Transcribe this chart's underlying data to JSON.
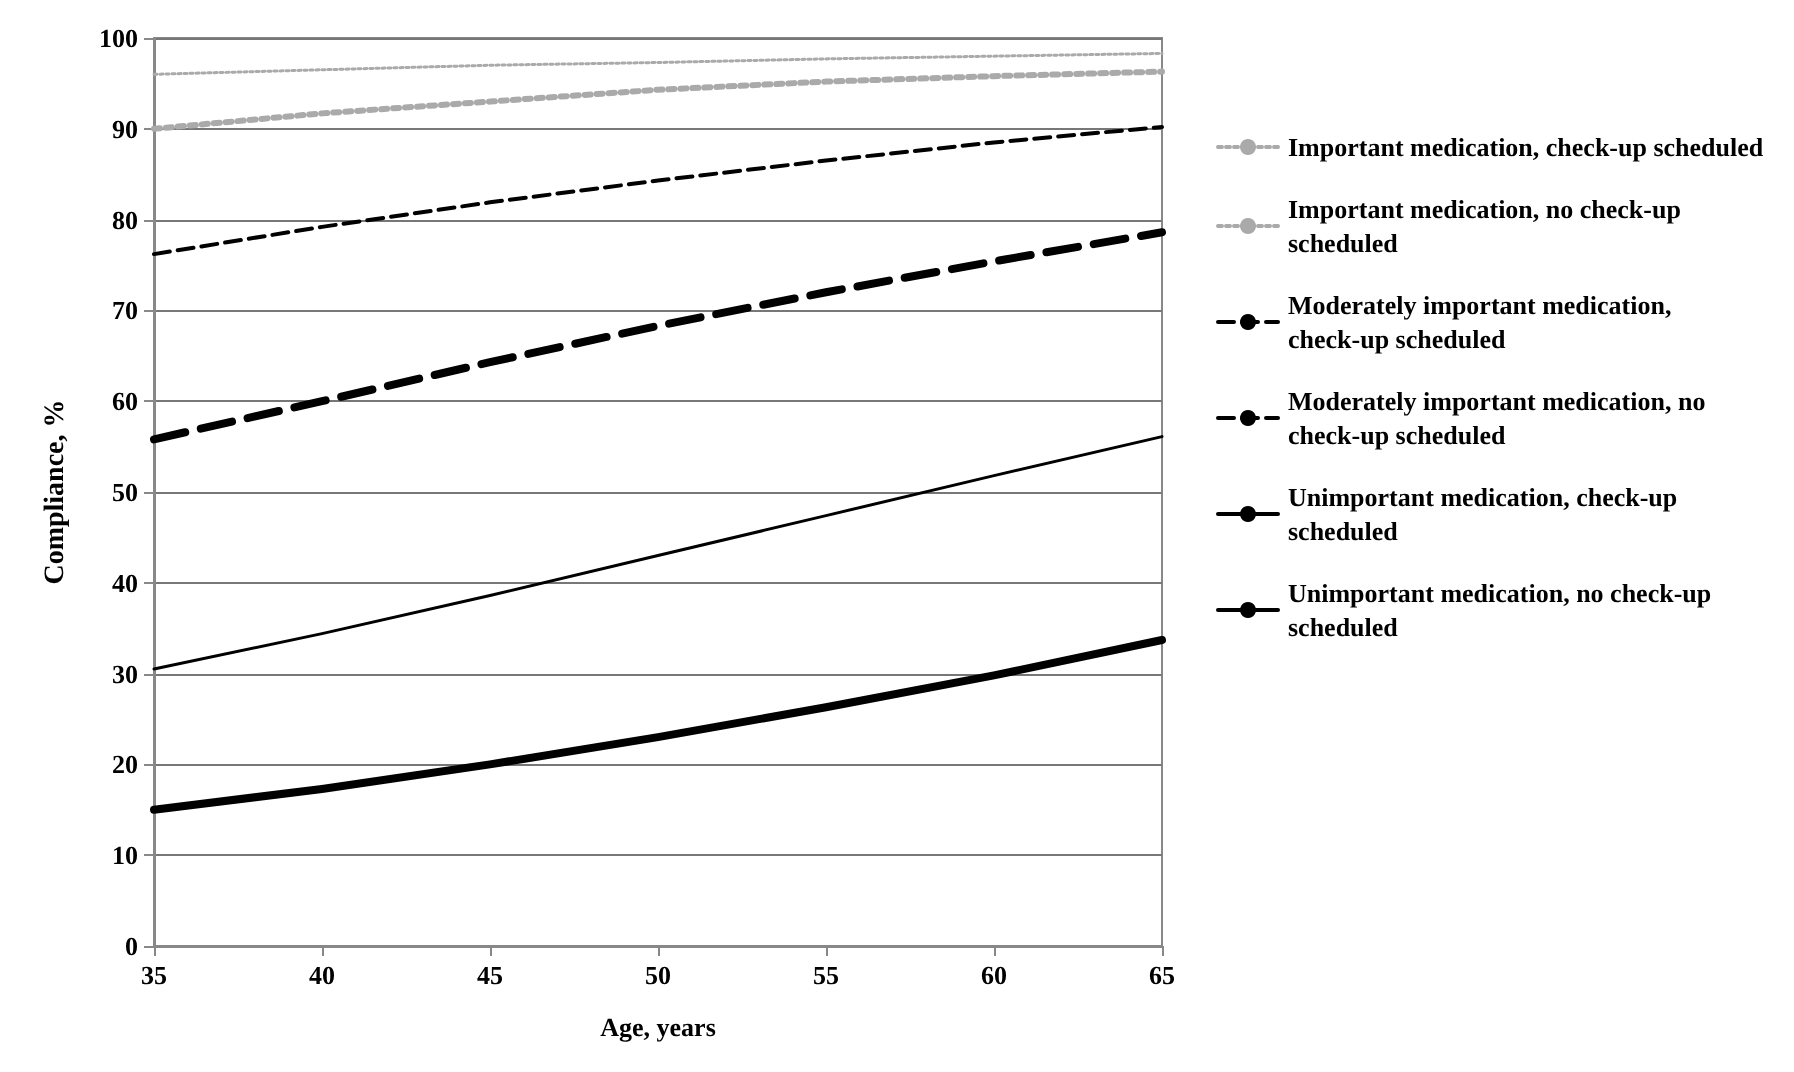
{
  "chart_data": {
    "type": "line",
    "xlabel": "Age, years",
    "ylabel": "Compliance, %",
    "x": [
      35,
      40,
      45,
      50,
      55,
      60,
      65
    ],
    "series": [
      {
        "name": "Important medication, check-up scheduled",
        "color": "#aaaaaa",
        "line_style": "dotted",
        "values": [
          96,
          96.5,
          97,
          97.3,
          97.7,
          98,
          98.3
        ]
      },
      {
        "name": "Important medication, no check-up scheduled",
        "color": "#aaaaaa",
        "line_style": "dotted",
        "values": [
          90,
          91.7,
          93,
          94.3,
          95.2,
          95.8,
          96.3
        ]
      },
      {
        "name": "Moderately important medication, check-up scheduled",
        "color": "#000000",
        "line_style": "dashed",
        "values": [
          76.2,
          79.2,
          81.9,
          84.3,
          86.5,
          88.5,
          90.2
        ]
      },
      {
        "name": "Moderately important medication, no check-up scheduled",
        "color": "#000000",
        "line_style": "dashed",
        "values": [
          55.8,
          60,
          64.3,
          68.3,
          72,
          75.4,
          78.6
        ]
      },
      {
        "name": "Unimportant medication, check-up scheduled",
        "color": "#000000",
        "line_style": "solid",
        "values": [
          30.5,
          34.4,
          38.6,
          43,
          47.4,
          51.8,
          56.1
        ]
      },
      {
        "name": "Unimportant medication, no check-up scheduled",
        "color": "#000000",
        "line_style": "solid",
        "values": [
          15,
          17.3,
          20,
          23,
          26.3,
          29.8,
          33.7
        ]
      }
    ],
    "xlim": [
      35,
      65
    ],
    "xticks": [
      35,
      40,
      45,
      50,
      55,
      60,
      65
    ],
    "ylim": [
      0,
      100
    ],
    "yticks": [
      0,
      10,
      20,
      30,
      40,
      50,
      60,
      70,
      80,
      90,
      100
    ],
    "grid": "y",
    "legend": "right",
    "marker": "none"
  }
}
